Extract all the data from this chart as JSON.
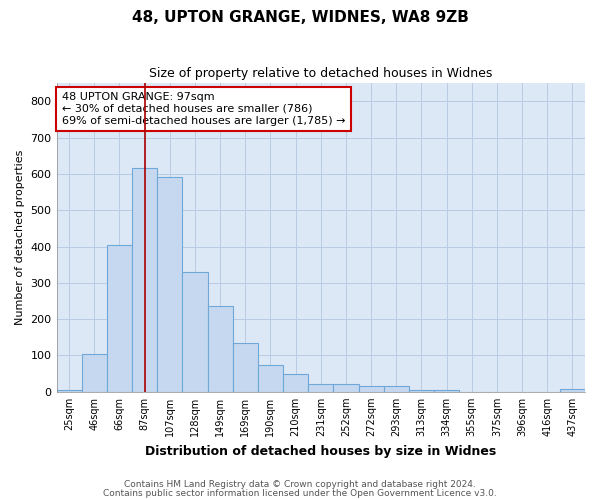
{
  "title1": "48, UPTON GRANGE, WIDNES, WA8 9ZB",
  "title2": "Size of property relative to detached houses in Widnes",
  "xlabel": "Distribution of detached houses by size in Widnes",
  "ylabel": "Number of detached properties",
  "categories": [
    "25sqm",
    "46sqm",
    "66sqm",
    "87sqm",
    "107sqm",
    "128sqm",
    "149sqm",
    "169sqm",
    "190sqm",
    "210sqm",
    "231sqm",
    "252sqm",
    "272sqm",
    "293sqm",
    "313sqm",
    "334sqm",
    "355sqm",
    "375sqm",
    "396sqm",
    "416sqm",
    "437sqm"
  ],
  "values": [
    5,
    105,
    405,
    615,
    590,
    330,
    235,
    135,
    75,
    50,
    22,
    22,
    15,
    15,
    5,
    5,
    0,
    0,
    0,
    0,
    7
  ],
  "bar_color": "#c5d8f0",
  "bar_edge_color": "#6fa8d8",
  "vline_x_index": 3,
  "vline_color": "#aa0000",
  "annotation_text": "48 UPTON GRANGE: 97sqm\n← 30% of detached houses are smaller (786)\n69% of semi-detached houses are larger (1,785) →",
  "annotation_box_color": "#ffffff",
  "annotation_box_edge": "#cc0000",
  "ylim": [
    0,
    850
  ],
  "yticks": [
    0,
    100,
    200,
    300,
    400,
    500,
    600,
    700,
    800
  ],
  "footer1": "Contains HM Land Registry data © Crown copyright and database right 2024.",
  "footer2": "Contains public sector information licensed under the Open Government Licence v3.0.",
  "fig_bg_color": "#ffffff",
  "plot_bg_color": "#dce8f5"
}
